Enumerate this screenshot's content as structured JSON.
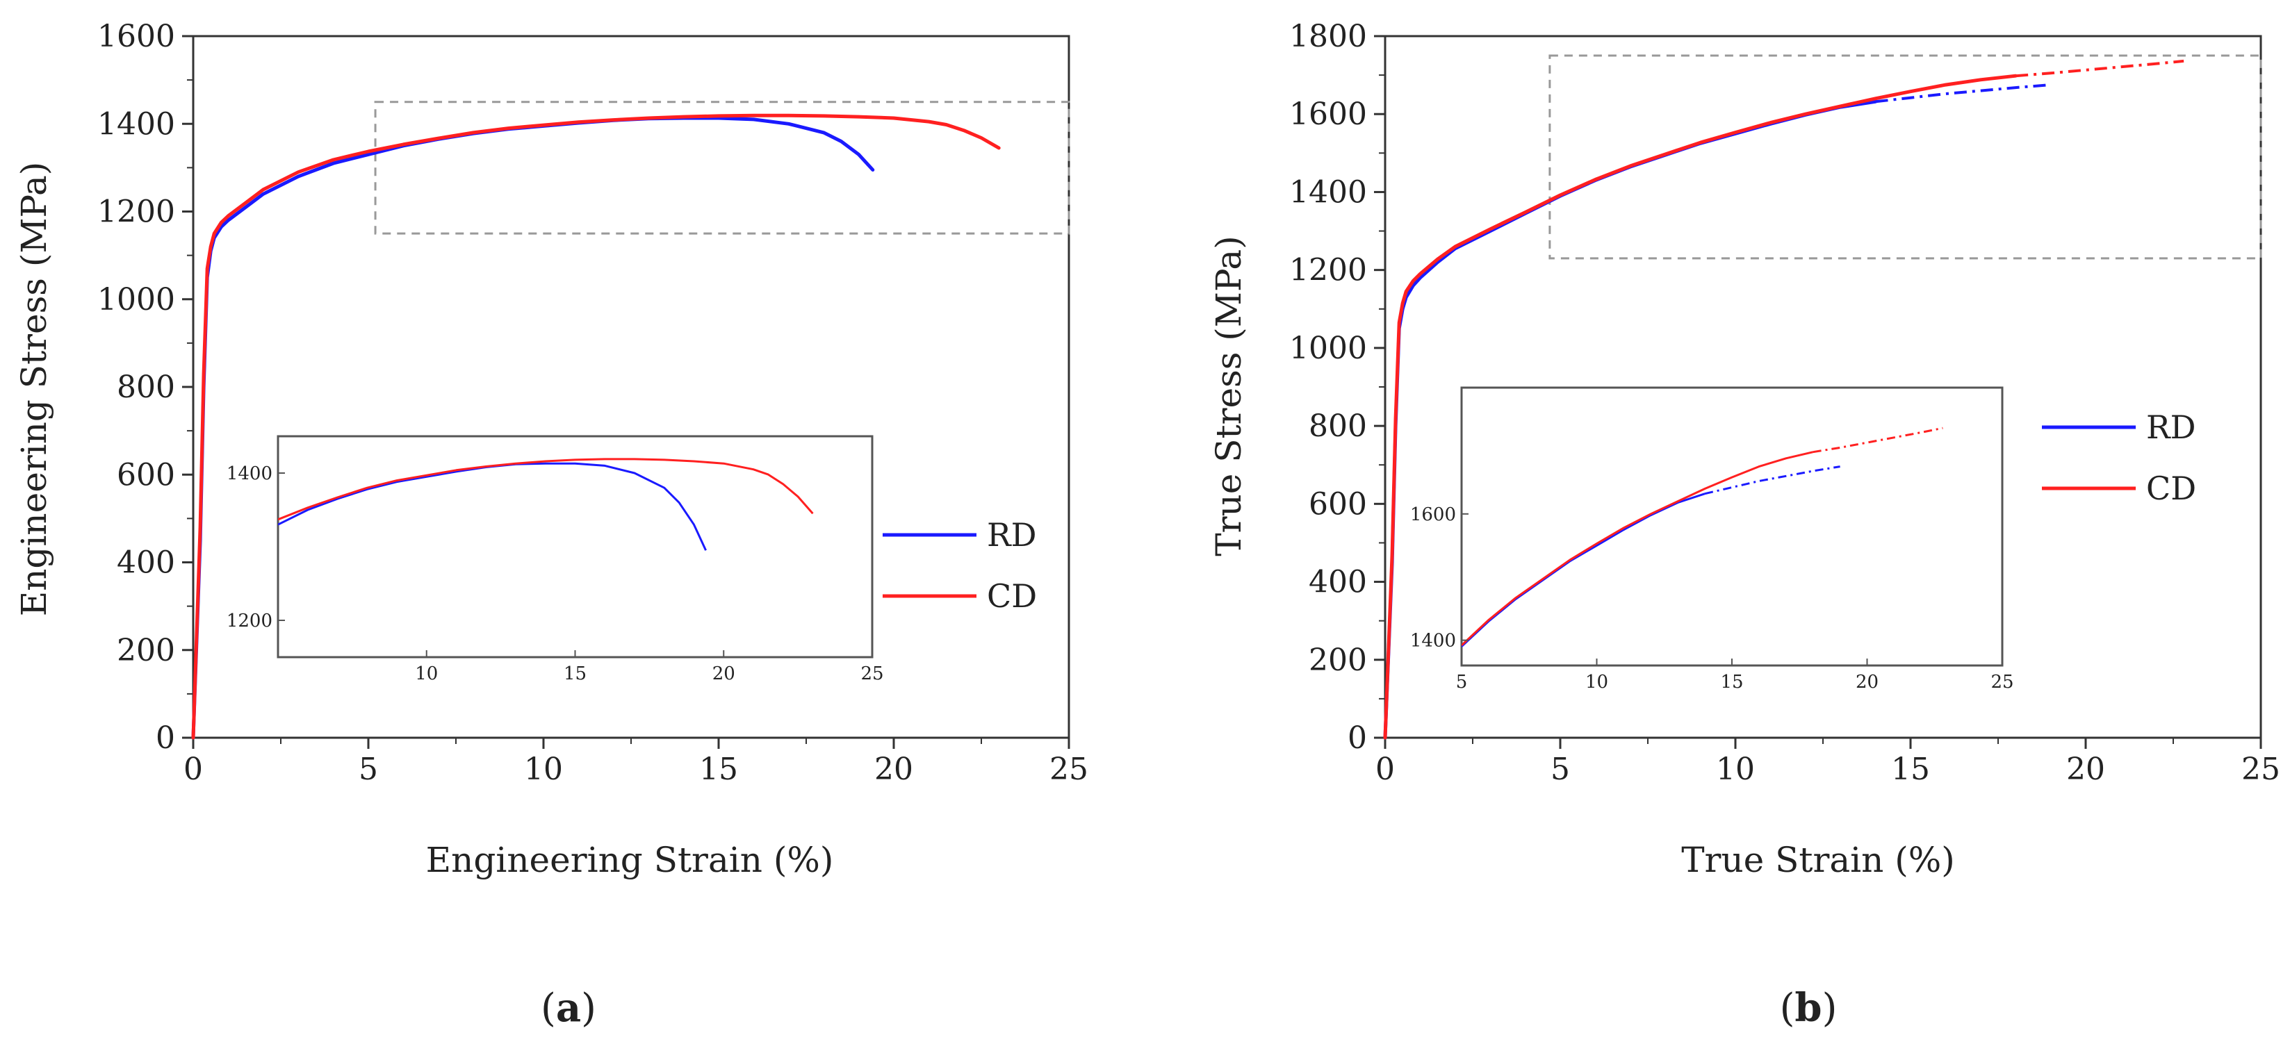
{
  "chart_data": [
    {
      "type": "line",
      "panel_label": "a",
      "xlabel": "Engineering Strain (%)",
      "ylabel": "Engineering Stress (MPa)",
      "xlim": [
        0,
        25
      ],
      "ylim": [
        0,
        1600
      ],
      "xticks": [
        0,
        5,
        10,
        15,
        20,
        25
      ],
      "yticks": [
        0,
        200,
        400,
        600,
        800,
        1000,
        1200,
        1400,
        1600
      ],
      "legend": {
        "position": "right",
        "entries": [
          "RD",
          "CD"
        ]
      },
      "series": [
        {
          "name": "RD",
          "color": "#1a1aff",
          "x": [
            0,
            0.2,
            0.3,
            0.4,
            0.5,
            0.6,
            0.8,
            1.0,
            1.5,
            2,
            3,
            4,
            5,
            6,
            7,
            8,
            9,
            10,
            11,
            12,
            13,
            14,
            15,
            16,
            17,
            18,
            18.5,
            19,
            19.4
          ],
          "y": [
            0,
            450,
            800,
            1050,
            1110,
            1140,
            1165,
            1180,
            1210,
            1240,
            1280,
            1310,
            1330,
            1350,
            1365,
            1378,
            1388,
            1395,
            1402,
            1408,
            1412,
            1413,
            1413,
            1410,
            1400,
            1380,
            1360,
            1330,
            1295
          ]
        },
        {
          "name": "CD",
          "color": "#ff2020",
          "x": [
            0,
            0.2,
            0.3,
            0.4,
            0.5,
            0.6,
            0.8,
            1.0,
            1.5,
            2,
            3,
            4,
            5,
            6,
            7,
            8,
            9,
            10,
            11,
            12,
            13,
            14,
            15,
            16,
            17,
            18,
            19,
            20,
            21,
            21.5,
            22,
            22.5,
            23
          ],
          "y": [
            0,
            480,
            830,
            1070,
            1120,
            1150,
            1175,
            1190,
            1220,
            1250,
            1290,
            1318,
            1337,
            1353,
            1367,
            1380,
            1390,
            1397,
            1404,
            1409,
            1413,
            1416,
            1418,
            1419,
            1419,
            1418,
            1416,
            1413,
            1405,
            1398,
            1385,
            1368,
            1345
          ]
        }
      ],
      "inset": {
        "xlim": [
          5,
          25
        ],
        "ylim": [
          1150,
          1450
        ],
        "xticks": [
          10,
          15,
          20,
          25
        ],
        "yticks": [
          1200,
          1400
        ],
        "zoom_box": {
          "x": [
            5.2,
            25
          ],
          "y": [
            1150,
            1450
          ]
        }
      }
    },
    {
      "type": "line",
      "panel_label": "b",
      "xlabel": "True Strain (%)",
      "ylabel": "True Stress (MPa)",
      "xlim": [
        0,
        25
      ],
      "ylim": [
        0,
        1800
      ],
      "xticks": [
        0,
        5,
        10,
        15,
        20,
        25
      ],
      "yticks": [
        0,
        200,
        400,
        600,
        800,
        1000,
        1200,
        1400,
        1600,
        1800
      ],
      "legend": {
        "position": "right",
        "entries": [
          "RD",
          "CD"
        ]
      },
      "series": [
        {
          "name": "RD",
          "color": "#1a1aff",
          "x": [
            0,
            0.2,
            0.3,
            0.4,
            0.5,
            0.6,
            0.8,
            1.0,
            1.5,
            2,
            3,
            4,
            5,
            6,
            7,
            8,
            9,
            10,
            11,
            12,
            13,
            14,
            15,
            16,
            17,
            18,
            19
          ],
          "y": [
            0,
            450,
            800,
            1050,
            1100,
            1130,
            1160,
            1180,
            1220,
            1255,
            1300,
            1345,
            1390,
            1430,
            1465,
            1495,
            1525,
            1550,
            1575,
            1598,
            1618,
            1632,
            1642,
            1652,
            1660,
            1668,
            1675
          ],
          "dash_from_x": 14
        },
        {
          "name": "CD",
          "color": "#ff2020",
          "x": [
            0,
            0.2,
            0.3,
            0.4,
            0.5,
            0.6,
            0.8,
            1.0,
            1.5,
            2,
            3,
            4,
            5,
            6,
            7,
            8,
            9,
            10,
            11,
            12,
            13,
            14,
            15,
            16,
            17,
            18,
            19,
            20,
            21,
            22,
            22.8
          ],
          "y": [
            0,
            470,
            820,
            1065,
            1115,
            1145,
            1172,
            1190,
            1228,
            1260,
            1305,
            1348,
            1392,
            1432,
            1467,
            1497,
            1527,
            1553,
            1578,
            1600,
            1620,
            1640,
            1658,
            1675,
            1688,
            1698,
            1705,
            1713,
            1721,
            1729,
            1736
          ],
          "dash_from_x": 18
        }
      ],
      "inset": {
        "xlim": [
          5,
          25
        ],
        "ylim": [
          1360,
          1800
        ],
        "xticks": [
          5,
          10,
          15,
          20,
          25
        ],
        "yticks": [
          1400,
          1600
        ],
        "zoom_box": {
          "x": [
            4.7,
            25
          ],
          "y": [
            1230,
            1750
          ]
        }
      }
    }
  ]
}
